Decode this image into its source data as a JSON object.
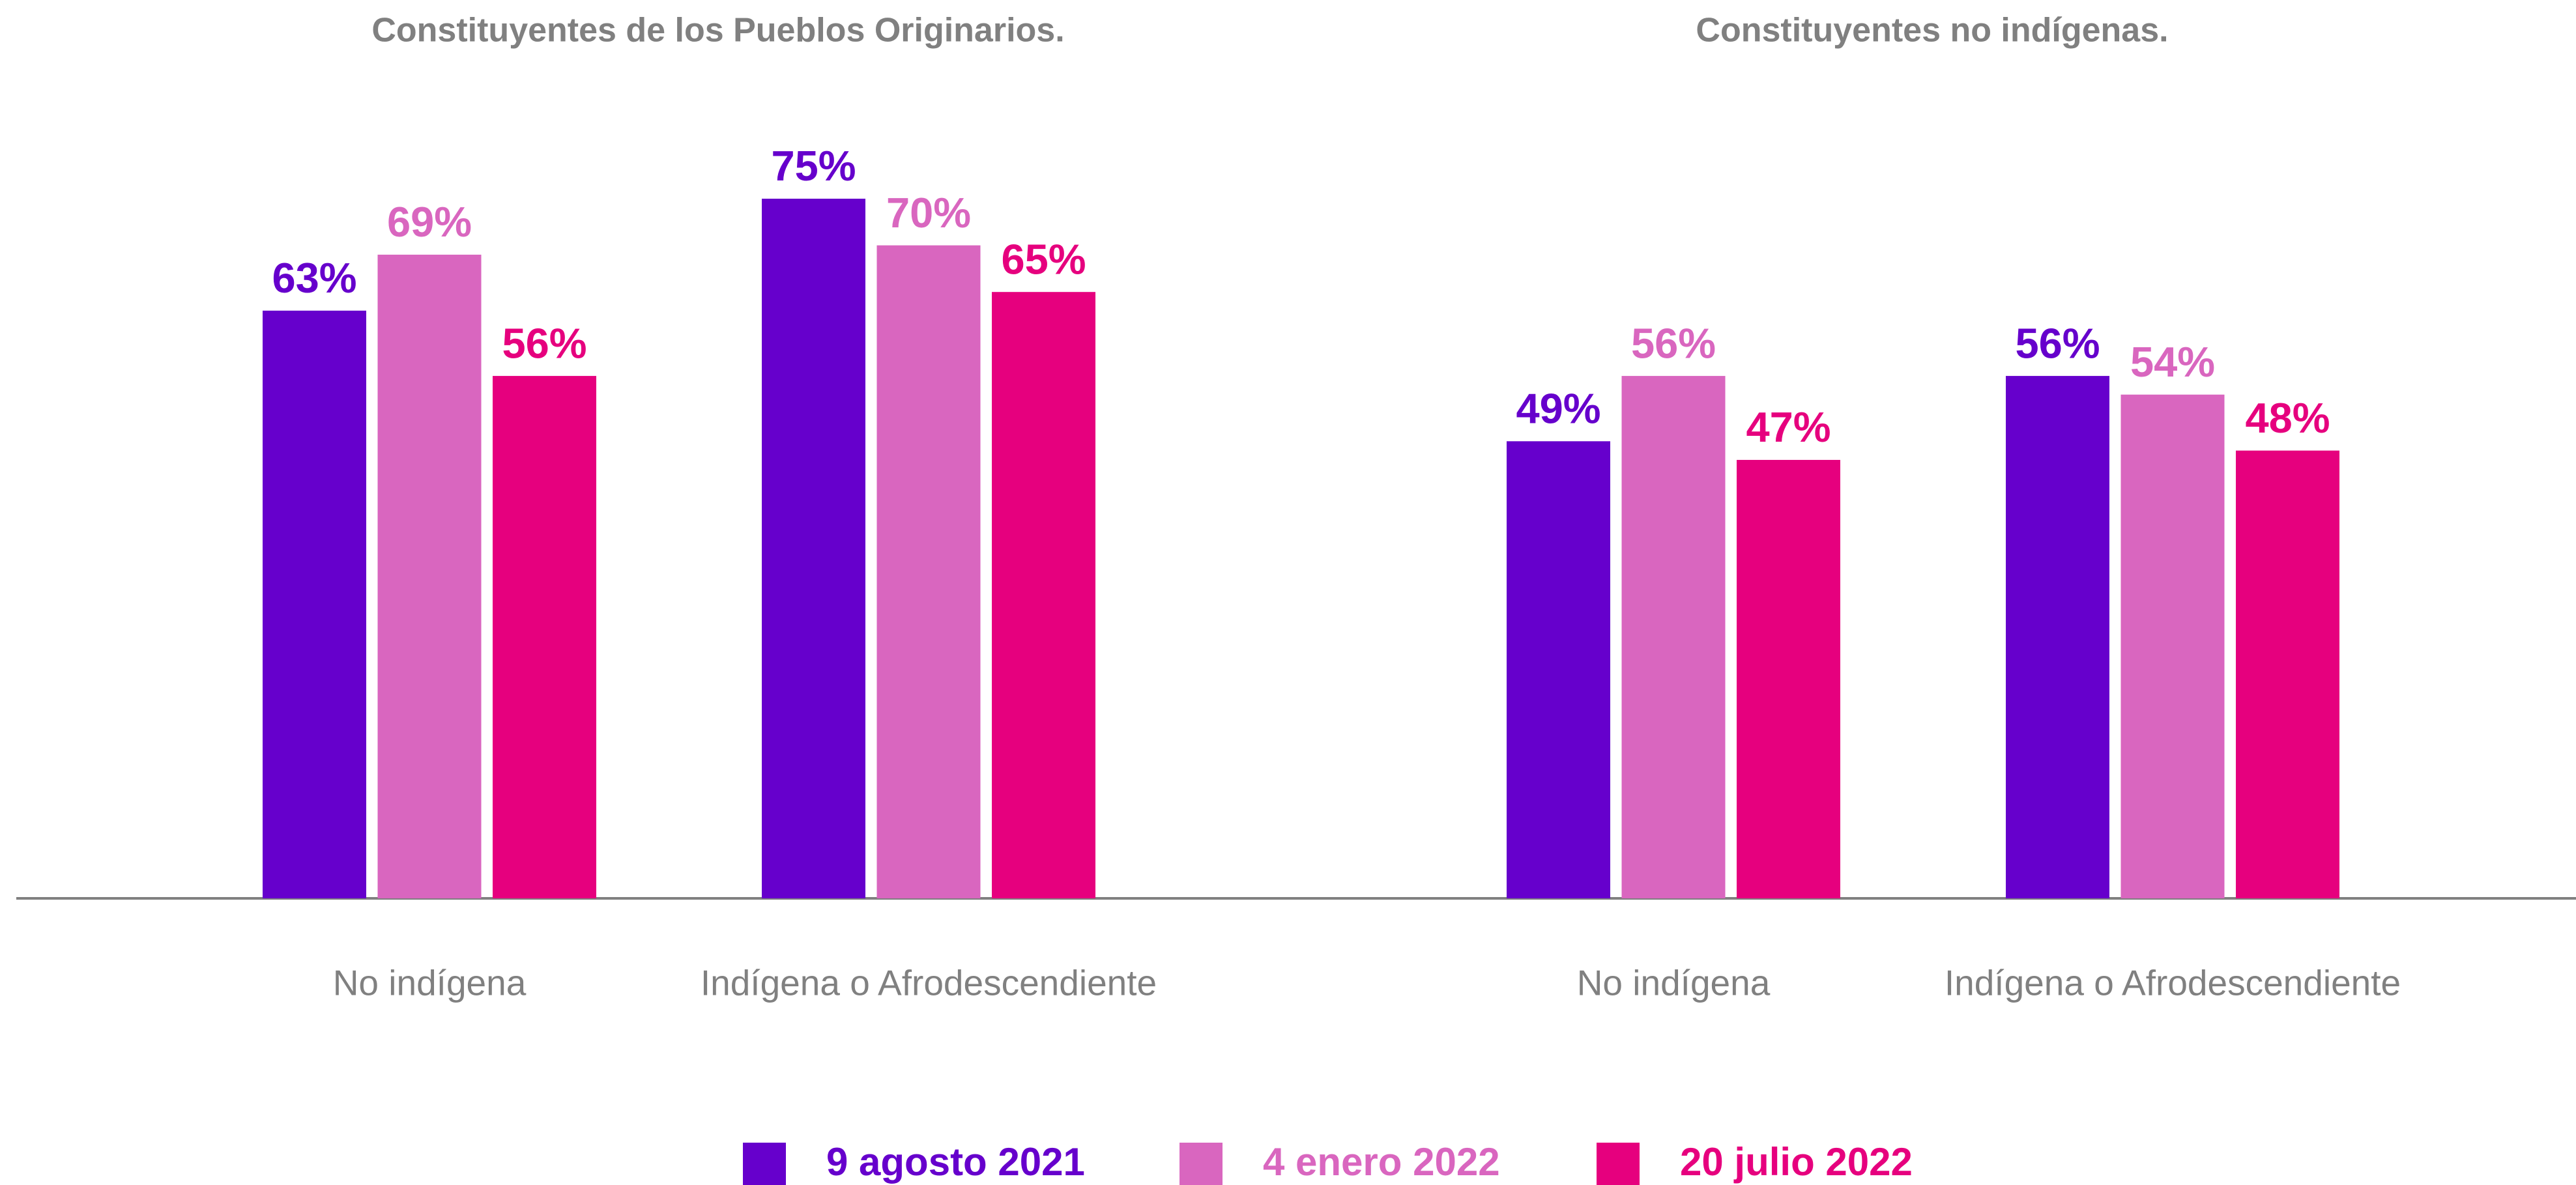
{
  "chart_data": [
    {
      "type": "bar",
      "title": "Constituyentes de los Pueblos Originarios.",
      "categories": [
        "No indígena",
        "Indígena o Afrodescendiente"
      ],
      "series": [
        {
          "color": "#6600cc",
          "values": [
            63,
            75
          ],
          "value_labels": [
            "63%",
            "75%"
          ]
        },
        {
          "color": "#d966bf",
          "values": [
            69,
            70
          ],
          "value_labels": [
            "69%",
            "70%"
          ]
        },
        {
          "color": "#e6007e",
          "values": [
            56,
            65
          ],
          "value_labels": [
            "56%",
            "65%"
          ]
        }
      ]
    },
    {
      "type": "bar",
      "title": "Constituyentes no indígenas.",
      "categories": [
        "No indígena",
        "Indígena o Afrodescendiente"
      ],
      "series": [
        {
          "color": "#6600cc",
          "values": [
            49,
            56
          ],
          "value_labels": [
            "49%",
            "56%"
          ]
        },
        {
          "color": "#d966bf",
          "values": [
            56,
            54
          ],
          "value_labels": [
            "56%",
            "54%"
          ]
        },
        {
          "color": "#e6007e",
          "values": [
            47,
            48
          ],
          "value_labels": [
            "47%",
            "48%"
          ]
        }
      ]
    }
  ],
  "legend": [
    {
      "name": "9 agosto 2021",
      "color": "#6600cc"
    },
    {
      "name": "4 enero 2022",
      "color": "#d966bf"
    },
    {
      "name": "20 julio 2022",
      "color": "#e6007e"
    }
  ]
}
